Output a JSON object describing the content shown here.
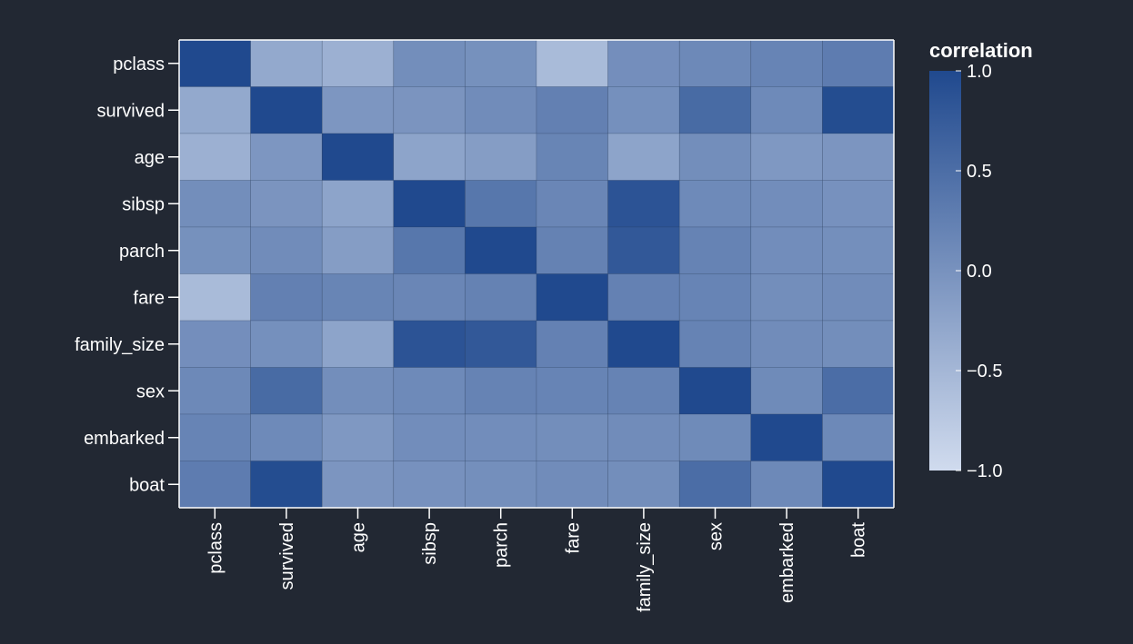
{
  "chart_data": {
    "type": "heatmap",
    "title": "",
    "xlabel": "",
    "ylabel": "",
    "variables": [
      "pclass",
      "survived",
      "age",
      "sibsp",
      "parch",
      "fare",
      "family_size",
      "sex",
      "embarked",
      "boat"
    ],
    "matrix": [
      [
        1.0,
        -0.31,
        -0.41,
        0.06,
        0.02,
        -0.56,
        0.05,
        0.12,
        0.19,
        0.3
      ],
      [
        -0.31,
        1.0,
        -0.06,
        -0.03,
        0.08,
        0.24,
        0.03,
        0.54,
        0.11,
        0.95
      ],
      [
        -0.41,
        -0.06,
        1.0,
        -0.24,
        -0.15,
        0.18,
        -0.24,
        0.06,
        -0.08,
        -0.04
      ],
      [
        0.06,
        -0.03,
        -0.24,
        1.0,
        0.37,
        0.16,
        0.86,
        0.11,
        0.07,
        0.01
      ],
      [
        0.02,
        0.08,
        -0.15,
        0.37,
        1.0,
        0.22,
        0.79,
        0.21,
        0.07,
        0.04
      ],
      [
        -0.56,
        0.24,
        0.18,
        0.16,
        0.22,
        1.0,
        0.23,
        0.19,
        0.06,
        0.08
      ],
      [
        0.05,
        0.03,
        -0.24,
        0.86,
        0.79,
        0.23,
        1.0,
        0.2,
        0.08,
        0.06
      ],
      [
        0.12,
        0.54,
        0.06,
        0.11,
        0.21,
        0.19,
        0.2,
        1.0,
        0.1,
        0.51
      ],
      [
        0.19,
        0.11,
        -0.08,
        0.07,
        0.07,
        0.06,
        0.08,
        0.1,
        1.0,
        0.13
      ],
      [
        0.3,
        0.95,
        -0.04,
        0.01,
        0.04,
        0.08,
        0.06,
        0.51,
        0.13,
        1.0
      ]
    ],
    "legend": {
      "title": "correlation",
      "ticks": [
        "1.0",
        "0.5",
        "0.0",
        "−0.5",
        "−1.0"
      ],
      "tick_values": [
        1.0,
        0.5,
        0.0,
        -0.5,
        -1.0
      ],
      "domain": [
        -1.0,
        1.0
      ],
      "placement": "right"
    },
    "colors": {
      "low": "#d0dbee",
      "high": "#20498e",
      "background": "#222833",
      "axis": "#ffffff",
      "text": "#ffffff"
    },
    "grid": false
  }
}
